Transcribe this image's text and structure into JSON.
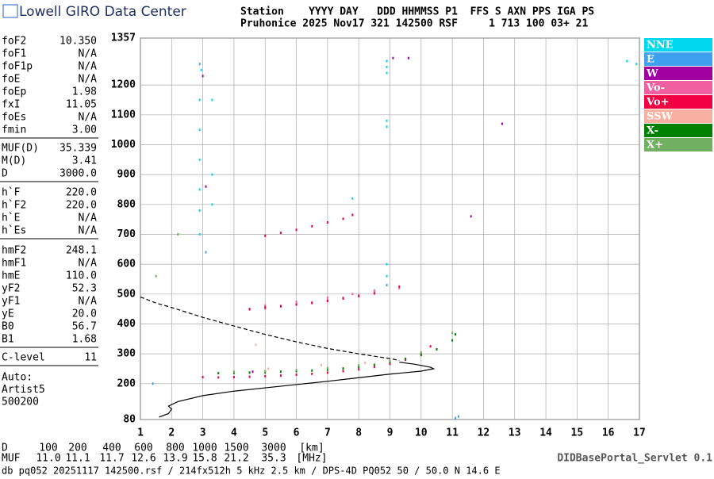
{
  "header": {
    "logo": "Lowell GIRO Data Center",
    "line1": "Station    YYYY DAY   DDD HHMMSS P1  FFS S AXN PPS IGA PS",
    "line2": "Pruhonice 2025 Nov17 321 142500 RSF     1 713 100 03+ 21"
  },
  "parameters": [
    [
      [
        "foF2",
        "10.350"
      ],
      [
        "foF1",
        "N/A"
      ],
      [
        "foF1p",
        "N/A"
      ],
      [
        "foE",
        "N/A"
      ],
      [
        "foEp",
        "1.98"
      ],
      [
        "fxI",
        "11.05"
      ],
      [
        "foEs",
        "N/A"
      ],
      [
        "fmin",
        "3.00"
      ]
    ],
    [
      [
        "MUF(D)",
        "35.339"
      ],
      [
        "M(D)",
        "3.41"
      ],
      [
        "D",
        "3000.0"
      ]
    ],
    [
      [
        "h`F",
        "220.0"
      ],
      [
        "h`F2",
        "220.0"
      ],
      [
        "h`E",
        "N/A"
      ],
      [
        "h`Es",
        "N/A"
      ]
    ],
    [
      [
        "hmF2",
        "248.1"
      ],
      [
        "hmF1",
        "N/A"
      ],
      [
        "hmE",
        "110.0"
      ],
      [
        "yF2",
        "52.3"
      ],
      [
        "yF1",
        "N/A"
      ],
      [
        "yE",
        "20.0"
      ],
      [
        "B0",
        "56.7"
      ],
      [
        "B1",
        "1.68"
      ]
    ],
    [
      [
        "C-level",
        "11"
      ]
    ]
  ],
  "scaling": [
    "Auto:",
    "Artist5",
    "500200"
  ],
  "muf_table": {
    "d_label": "D",
    "d_values": [
      "100",
      "200",
      "400",
      "600",
      "800",
      "1000",
      "1500",
      "3000"
    ],
    "d_unit": "[km]",
    "muf_label": "MUF",
    "muf_values": [
      "11.0",
      "11.1",
      "11.7",
      "12.6",
      "13.9",
      "15.8",
      "21.2",
      "35.3"
    ],
    "muf_unit": "[MHz]"
  },
  "servlet": "DIDBasePortal_Servlet 0.1",
  "footer": "db pq052 20251117 142500.rsf / 214fx512h 5 kHz 2.5 km / DPS-4D PQ052 50 / 50.0 N 14.6 E",
  "chart_data": {
    "type": "scatter",
    "xlim": [
      1,
      17
    ],
    "ylim": [
      80,
      1357
    ],
    "xticks": [
      1,
      2,
      3,
      4,
      5,
      6,
      7,
      8,
      9,
      10,
      11,
      12,
      13,
      14,
      15,
      16,
      17
    ],
    "yticks": [
      80,
      200,
      300,
      400,
      500,
      600,
      700,
      800,
      900,
      1000,
      1100,
      1200,
      1357
    ],
    "grid": true,
    "series": [
      {
        "name": "NNE",
        "color": "#00d8f0",
        "x": [
          2.9,
          2.9,
          2.9,
          2.9,
          2.9,
          2.9,
          2.95,
          3.3,
          3.3,
          3.3,
          8.9,
          8.9,
          8.9,
          8.9,
          8.9,
          8.9,
          8.9,
          16.6,
          16.9,
          7.8
        ],
        "values": [
          700,
          780,
          850,
          950,
          1050,
          1150,
          1250,
          800,
          900,
          1150,
          1240,
          1260,
          1280,
          1060,
          1080,
          600,
          560,
          1280,
          1270,
          820
        ]
      },
      {
        "name": "E",
        "color": "#40a0f0",
        "x": [
          1.4,
          3.1,
          2.9,
          8.9,
          11.1,
          11.2
        ],
        "values": [
          200,
          640,
          1270,
          530,
          85,
          90
        ]
      },
      {
        "name": "W",
        "color": "#a000a0",
        "x": [
          3.0,
          3.1,
          4.6,
          9.6,
          11.6,
          12.6,
          9.1
        ],
        "values": [
          1230,
          860,
          240,
          1290,
          760,
          1070,
          1290
        ]
      },
      {
        "name": "Vo-",
        "color": "#f060a0",
        "x": [
          4.5,
          5.0,
          5.5,
          6.0,
          6.5,
          7.0,
          7.5,
          8.0,
          8.5,
          9.3,
          5.0,
          6.0,
          7.0,
          7.8,
          8.5
        ],
        "values": [
          448,
          452,
          458,
          466,
          472,
          480,
          488,
          497,
          506,
          520,
          462,
          474,
          488,
          500,
          512
        ]
      },
      {
        "name": "Vo+",
        "color": "#f00040",
        "x": [
          3.0,
          3.5,
          4.0,
          4.5,
          5.0,
          5.5,
          6.0,
          6.5,
          7.0,
          7.5,
          8.0,
          8.5,
          9.0,
          9.5,
          10.0,
          10.3,
          4.5,
          5.0,
          5.5,
          6.0,
          6.5,
          7.0,
          7.5,
          8.0,
          8.5,
          9.3,
          5.0,
          5.5,
          6.0,
          6.5,
          7.0,
          7.5,
          7.8
        ],
        "values": [
          222,
          221,
          222,
          223,
          225,
          227,
          230,
          233,
          237,
          242,
          248,
          256,
          266,
          280,
          300,
          325,
          450,
          455,
          460,
          465,
          470,
          477,
          485,
          493,
          502,
          525,
          695,
          705,
          715,
          727,
          740,
          752,
          765
        ]
      },
      {
        "name": "SSW",
        "color": "#f8b0a0",
        "x": [
          4.7,
          5.1,
          6.8,
          8.2
        ],
        "values": [
          330,
          250,
          262,
          270
        ]
      },
      {
        "name": "X-",
        "color": "#008000",
        "x": [
          3.5,
          4.0,
          4.5,
          5.0,
          5.5,
          6.0,
          6.5,
          7.0,
          7.5,
          8.0,
          8.5,
          9.0,
          9.5,
          10.0,
          10.5,
          11.0,
          11.1
        ],
        "values": [
          235,
          236,
          237,
          238,
          240,
          242,
          244,
          247,
          251,
          256,
          263,
          272,
          283,
          296,
          315,
          345,
          365
        ]
      },
      {
        "name": "X+",
        "color": "#70b060",
        "x": [
          4.0,
          5.0,
          6.0,
          7.0,
          8.0,
          9.0,
          10.0,
          11.0,
          1.5,
          2.2
        ],
        "values": [
          240,
          242,
          246,
          252,
          262,
          278,
          305,
          370,
          560,
          700
        ]
      }
    ],
    "lines": [
      {
        "color": "#000",
        "dashed": false,
        "x": [
          1.6,
          1.9,
          2.0,
          1.9,
          2.2,
          3.0,
          4.0,
          5.0,
          6.0,
          7.0,
          8.0,
          9.0,
          10.0,
          10.4,
          10.3,
          9.8,
          9.3
        ],
        "values": [
          88,
          100,
          115,
          125,
          140,
          160,
          175,
          186,
          197,
          208,
          220,
          232,
          242,
          250,
          255,
          265,
          272
        ]
      },
      {
        "color": "#000",
        "dashed": true,
        "x": [
          1.0,
          1.5,
          2.0,
          3.0,
          4.0,
          5.0,
          6.0,
          7.0,
          8.0,
          9.0,
          9.3
        ],
        "values": [
          490,
          470,
          455,
          422,
          393,
          365,
          340,
          318,
          300,
          284,
          278
        ]
      }
    ]
  }
}
